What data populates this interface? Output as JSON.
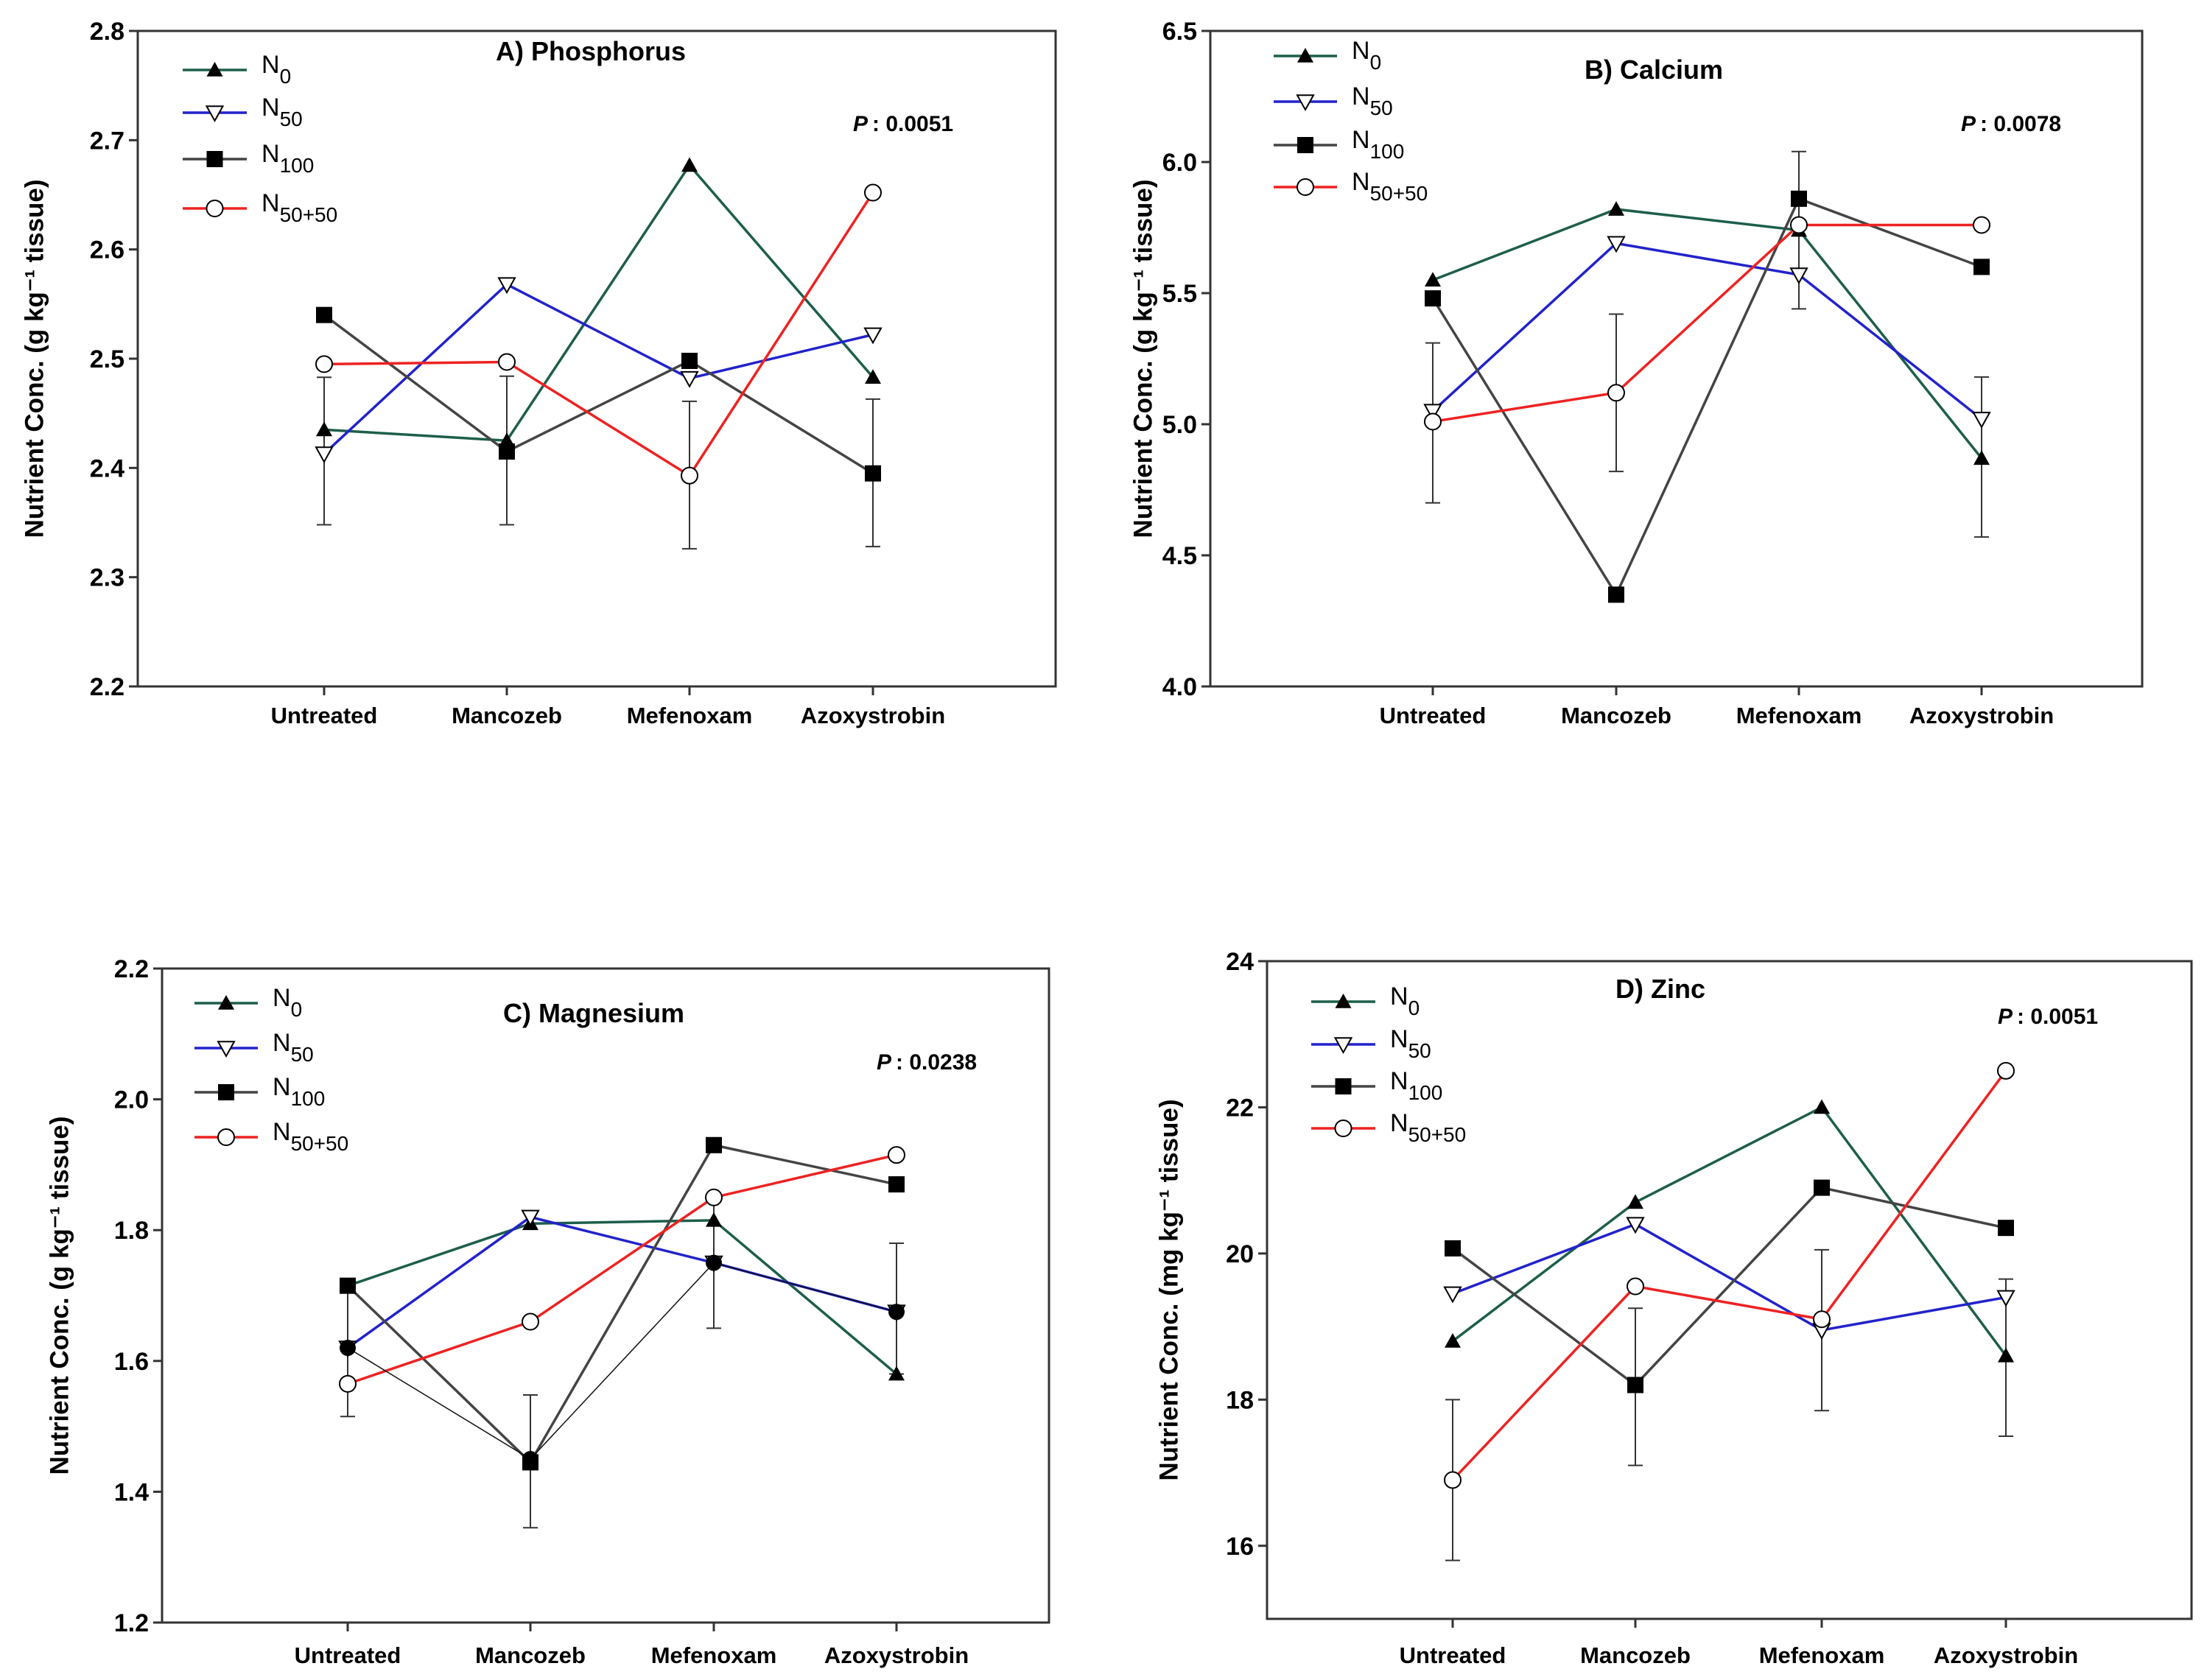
{
  "chart_data": [
    {
      "type": "line",
      "title": "A) Phosphorus",
      "p_label": "P",
      "p_value": ": 0.0051",
      "ylabel": "Nutrient Conc. (g kg⁻¹ tissue)",
      "xlabel": "",
      "categories": [
        "Untreated",
        "Mancozeb",
        "Mefenoxam",
        "Azoxystrobin"
      ],
      "ylim": [
        2.2,
        2.8
      ],
      "yticks": [
        "2.2",
        "2.3",
        "2.4",
        "2.5",
        "2.6",
        "2.7",
        "2.8"
      ],
      "legend_placement": "top-left",
      "series": [
        {
          "name": "N",
          "sub": "0",
          "color": "#1d5e4b",
          "marker": "triangle-filled",
          "values": [
            2.435,
            2.425,
            2.677,
            2.483
          ]
        },
        {
          "name": "N",
          "sub": "50",
          "color": "#2222cc",
          "marker": "triangle-down-open",
          "values": [
            2.413,
            2.568,
            2.482,
            2.522
          ]
        },
        {
          "name": "N",
          "sub": "100",
          "color": "#444444",
          "marker": "square-filled",
          "values": [
            2.54,
            2.415,
            2.498,
            2.395
          ]
        },
        {
          "name": "N",
          "sub": "50+50",
          "color": "#ee2222",
          "marker": "circle-open",
          "values": [
            2.495,
            2.497,
            2.393,
            2.652
          ]
        }
      ],
      "error_bars": [
        [
          2.348,
          2.483
        ],
        [
          2.348,
          2.484
        ],
        [
          2.326,
          2.461
        ],
        [
          2.328,
          2.463
        ]
      ]
    },
    {
      "type": "line",
      "title": "B) Calcium",
      "p_label": "P",
      "p_value": ": 0.0078",
      "ylabel": "Nutrient Conc. (g kg⁻¹ tissue)",
      "xlabel": "",
      "categories": [
        "Untreated",
        "Mancozeb",
        "Mefenoxam",
        "Azoxystrobin"
      ],
      "ylim": [
        4.0,
        6.5
      ],
      "yticks": [
        "4.0",
        "4.5",
        "5.0",
        "5.5",
        "6.0",
        "6.5"
      ],
      "legend_placement": "top-left",
      "series": [
        {
          "name": "N",
          "sub": "0",
          "color": "#1d5e4b",
          "marker": "triangle-filled",
          "values": [
            5.55,
            5.82,
            5.74,
            4.87
          ]
        },
        {
          "name": "N",
          "sub": "50",
          "color": "#2222cc",
          "marker": "triangle-down-open",
          "values": [
            5.05,
            5.69,
            5.57,
            5.02
          ]
        },
        {
          "name": "N",
          "sub": "100",
          "color": "#444444",
          "marker": "square-filled",
          "values": [
            5.48,
            4.35,
            5.86,
            5.6
          ]
        },
        {
          "name": "N",
          "sub": "50+50",
          "color": "#ee2222",
          "marker": "circle-open",
          "values": [
            5.01,
            5.12,
            5.76,
            5.76
          ]
        }
      ],
      "error_bars": [
        [
          4.7,
          5.31
        ],
        [
          4.82,
          5.42
        ],
        [
          5.44,
          6.04
        ],
        [
          4.57,
          5.18
        ]
      ]
    },
    {
      "type": "line",
      "title": "C) Magnesium",
      "p_label": "P",
      "p_value": ": 0.0238",
      "ylabel": "Nutrient Conc. (g kg⁻¹ tissue)",
      "xlabel": "",
      "categories": [
        "Untreated",
        "Mancozeb",
        "Mefenoxam",
        "Azoxystrobin"
      ],
      "ylim": [
        1.2,
        2.2
      ],
      "yticks": [
        "1.2",
        "1.4",
        "1.6",
        "1.8",
        "2.0",
        "2.2"
      ],
      "legend_placement": "top-left",
      "series": [
        {
          "name": "N",
          "sub": "0",
          "color": "#1d5e4b",
          "marker": "triangle-filled",
          "values": [
            1.715,
            1.81,
            1.815,
            1.58
          ]
        },
        {
          "name": "N",
          "sub": "50",
          "color": "#2222cc",
          "marker": "triangle-down-open",
          "values": [
            1.62,
            1.82,
            1.75,
            1.675
          ]
        },
        {
          "name": "N",
          "sub": "100",
          "color": "#444444",
          "marker": "square-filled",
          "values": [
            1.715,
            1.445,
            1.93,
            1.87
          ]
        },
        {
          "name": "N",
          "sub": "50+50",
          "color": "#ee2222",
          "marker": "circle-open",
          "values": [
            1.565,
            1.66,
            1.85,
            1.915
          ]
        },
        {
          "name": "",
          "sub": "",
          "color": "#111111",
          "marker": "circle-filled",
          "thin": true,
          "values": [
            1.62,
            1.45,
            1.75,
            1.675
          ]
        }
      ],
      "error_bars": [
        [
          1.515,
          1.715
        ],
        [
          1.345,
          1.548
        ],
        [
          1.65,
          1.85
        ],
        [
          1.58,
          1.78
        ]
      ]
    },
    {
      "type": "line",
      "title": "D) Zinc",
      "p_label": "P",
      "p_value": ": 0.0051",
      "ylabel": "Nutrient Conc. (mg kg⁻¹ tissue)",
      "xlabel": "",
      "categories": [
        "Untreated",
        "Mancozeb",
        "Mefenoxam",
        "Azoxystrobin"
      ],
      "ylim": [
        15,
        24
      ],
      "yticks": [
        "16",
        "18",
        "20",
        "22",
        "24"
      ],
      "legend_placement": "top-left",
      "series": [
        {
          "name": "N",
          "sub": "0",
          "color": "#1d5e4b",
          "marker": "triangle-filled",
          "values": [
            18.8,
            20.7,
            22.0,
            18.6
          ]
        },
        {
          "name": "N",
          "sub": "50",
          "color": "#2222cc",
          "marker": "triangle-down-open",
          "values": [
            19.45,
            20.4,
            18.95,
            19.4
          ]
        },
        {
          "name": "N",
          "sub": "100",
          "color": "#444444",
          "marker": "square-filled",
          "values": [
            20.07,
            18.2,
            20.9,
            20.35
          ]
        },
        {
          "name": "N",
          "sub": "50+50",
          "color": "#ee2222",
          "marker": "circle-open",
          "values": [
            16.9,
            19.55,
            19.1,
            22.5
          ]
        }
      ],
      "error_bars": [
        [
          15.8,
          18.0
        ],
        [
          17.1,
          19.25
        ],
        [
          17.85,
          20.05
        ],
        [
          17.5,
          19.65
        ]
      ]
    }
  ]
}
